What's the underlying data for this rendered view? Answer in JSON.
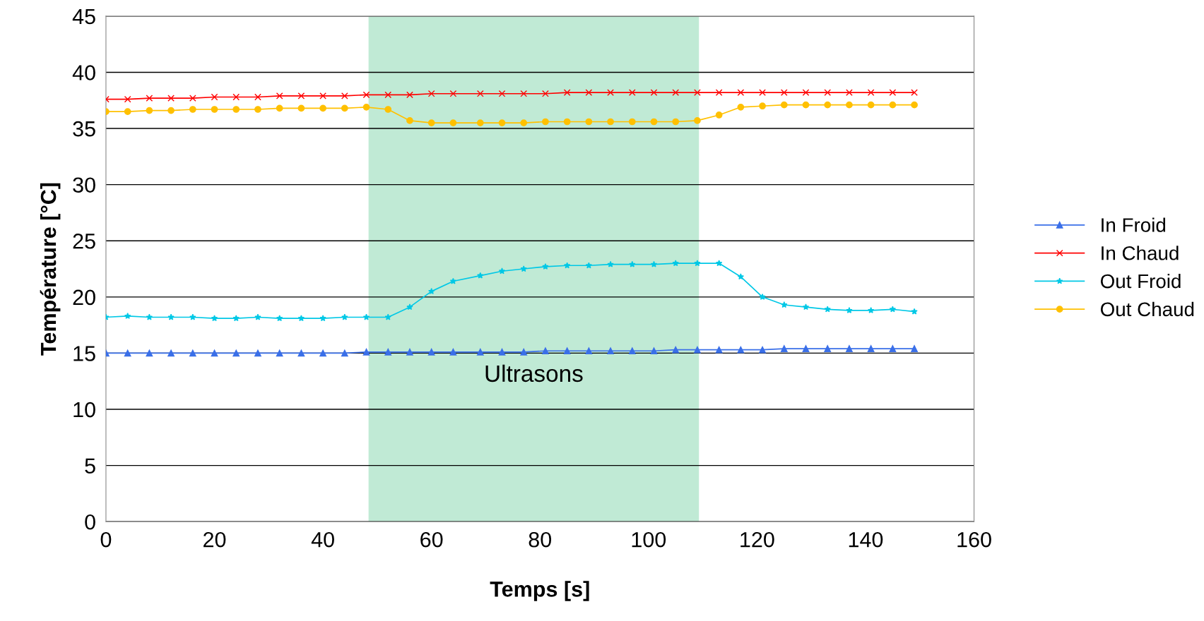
{
  "chart_data": {
    "type": "line",
    "xlabel": "Temps [s]",
    "ylabel": "Température [°C]",
    "x": [
      0,
      4,
      8,
      12,
      16,
      20,
      24,
      28,
      32,
      36,
      40,
      44,
      48,
      52,
      56,
      60,
      64,
      69,
      73,
      77,
      81,
      85,
      89,
      93,
      97,
      101,
      105,
      109,
      113,
      117,
      121,
      125,
      129,
      133,
      137,
      141,
      145,
      149
    ],
    "xlim": [
      0,
      160
    ],
    "xticks": [
      0,
      20,
      40,
      60,
      80,
      100,
      120,
      140,
      160
    ],
    "ylim": [
      0,
      45
    ],
    "yticks": [
      0,
      5,
      10,
      15,
      20,
      25,
      30,
      35,
      40,
      45
    ],
    "grid": "y",
    "legend": "right",
    "bands": [
      {
        "axis": "x",
        "from": 48.4,
        "to": 109.3,
        "label": "Ultrasons",
        "color": "#c0ead5"
      }
    ],
    "series": [
      {
        "name": "In Froid",
        "color": "#3a6fe8",
        "marker": "triangle",
        "values": [
          15.0,
          15.0,
          15.0,
          15.0,
          15.0,
          15.0,
          15.0,
          15.0,
          15.0,
          15.0,
          15.0,
          15.0,
          15.1,
          15.1,
          15.1,
          15.1,
          15.1,
          15.1,
          15.1,
          15.1,
          15.2,
          15.2,
          15.2,
          15.2,
          15.2,
          15.2,
          15.3,
          15.3,
          15.3,
          15.3,
          15.3,
          15.4,
          15.4,
          15.4,
          15.4,
          15.4,
          15.4,
          15.4
        ]
      },
      {
        "name": "In Chaud",
        "color": "#ff0000",
        "marker": "cross",
        "values": [
          37.6,
          37.6,
          37.7,
          37.7,
          37.7,
          37.8,
          37.8,
          37.8,
          37.9,
          37.9,
          37.9,
          37.9,
          38.0,
          38.0,
          38.0,
          38.1,
          38.1,
          38.1,
          38.1,
          38.1,
          38.1,
          38.2,
          38.2,
          38.2,
          38.2,
          38.2,
          38.2,
          38.2,
          38.2,
          38.2,
          38.2,
          38.2,
          38.2,
          38.2,
          38.2,
          38.2,
          38.2,
          38.2
        ]
      },
      {
        "name": "Out Froid",
        "color": "#00c8e6",
        "marker": "star",
        "values": [
          18.2,
          18.3,
          18.2,
          18.2,
          18.2,
          18.1,
          18.1,
          18.2,
          18.1,
          18.1,
          18.1,
          18.2,
          18.2,
          18.2,
          19.1,
          20.5,
          21.4,
          21.9,
          22.3,
          22.5,
          22.7,
          22.8,
          22.8,
          22.9,
          22.9,
          22.9,
          23.0,
          23.0,
          23.0,
          21.8,
          20.0,
          19.3,
          19.1,
          18.9,
          18.8,
          18.8,
          18.9,
          18.7
        ]
      },
      {
        "name": "Out Chaud",
        "color": "#ffc000",
        "marker": "circle",
        "values": [
          36.5,
          36.5,
          36.6,
          36.6,
          36.7,
          36.7,
          36.7,
          36.7,
          36.8,
          36.8,
          36.8,
          36.8,
          36.9,
          36.7,
          35.7,
          35.5,
          35.5,
          35.5,
          35.5,
          35.5,
          35.6,
          35.6,
          35.6,
          35.6,
          35.6,
          35.6,
          35.6,
          35.7,
          36.2,
          36.9,
          37.0,
          37.1,
          37.1,
          37.1,
          37.1,
          37.1,
          37.1,
          37.1
        ]
      }
    ]
  }
}
